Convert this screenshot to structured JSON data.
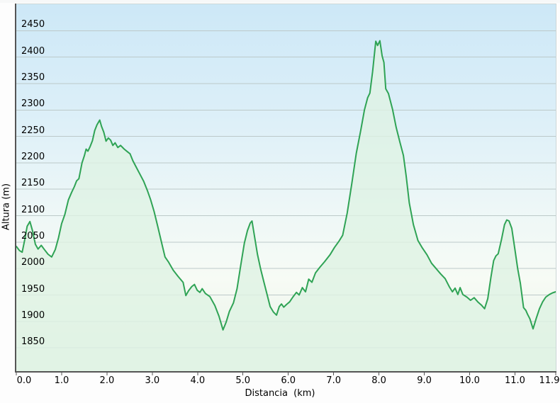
{
  "chart_data": {
    "type": "area",
    "title": "",
    "ylabel": "Altura (m)",
    "xlabel": "Distancia  (km)",
    "grid": "horizontal",
    "legend": "none",
    "xlim": [
      0,
      11.9
    ],
    "ylim": [
      1806,
      2500
    ],
    "x_tick_values": [
      0,
      1,
      2,
      3,
      4,
      5,
      6,
      7,
      8,
      9,
      10,
      11,
      11.9
    ],
    "x_tick_labels": [
      "0.0",
      "1.0",
      "2.0",
      "3.0",
      "4.0",
      "5.0",
      "6.0",
      "7.0",
      "8.0",
      "9.0",
      "10.0",
      "11.0",
      "11.9"
    ],
    "y_tick_values": [
      1850,
      1900,
      1950,
      2000,
      2050,
      2100,
      2150,
      2200,
      2250,
      2300,
      2350,
      2400,
      2450
    ],
    "y_tick_labels": [
      "1850",
      "1900",
      "1950",
      "2000",
      "2050",
      "2100",
      "2150",
      "2200",
      "2250",
      "2300",
      "2350",
      "2400",
      "2450"
    ],
    "colors": {
      "line": "#2fa355",
      "fill": "rgba(223,242,228,0.80)",
      "grid": "#bcc9c9",
      "axis": "#555555",
      "frame": "#ccd6d6",
      "text": "#000000",
      "bg_stops": [
        [
          "0%",
          "#cde8f7"
        ],
        [
          "30%",
          "#dceff8"
        ],
        [
          "55%",
          "#edf7f7"
        ],
        [
          "75%",
          "#f7fbf5"
        ],
        [
          "88%",
          "#edf6ec"
        ],
        [
          "100%",
          "#e8f4e9"
        ]
      ]
    },
    "series": [
      {
        "name": "elevation-profile",
        "points": [
          [
            0.0,
            2042
          ],
          [
            0.07,
            2034
          ],
          [
            0.13,
            2031
          ],
          [
            0.18,
            2052
          ],
          [
            0.24,
            2080
          ],
          [
            0.3,
            2089
          ],
          [
            0.36,
            2071
          ],
          [
            0.42,
            2046
          ],
          [
            0.48,
            2037
          ],
          [
            0.55,
            2044
          ],
          [
            0.62,
            2036
          ],
          [
            0.7,
            2027
          ],
          [
            0.78,
            2022
          ],
          [
            0.86,
            2036
          ],
          [
            0.93,
            2058
          ],
          [
            1.0,
            2085
          ],
          [
            1.07,
            2102
          ],
          [
            1.15,
            2130
          ],
          [
            1.22,
            2144
          ],
          [
            1.28,
            2155
          ],
          [
            1.33,
            2166
          ],
          [
            1.38,
            2170
          ],
          [
            1.45,
            2200
          ],
          [
            1.5,
            2213
          ],
          [
            1.54,
            2226
          ],
          [
            1.58,
            2222
          ],
          [
            1.63,
            2231
          ],
          [
            1.68,
            2242
          ],
          [
            1.73,
            2261
          ],
          [
            1.78,
            2272
          ],
          [
            1.84,
            2281
          ],
          [
            1.88,
            2269
          ],
          [
            1.93,
            2258
          ],
          [
            1.98,
            2241
          ],
          [
            2.03,
            2247
          ],
          [
            2.08,
            2243
          ],
          [
            2.13,
            2233
          ],
          [
            2.18,
            2238
          ],
          [
            2.24,
            2229
          ],
          [
            2.3,
            2233
          ],
          [
            2.38,
            2226
          ],
          [
            2.45,
            2221
          ],
          [
            2.51,
            2217
          ],
          [
            2.57,
            2204
          ],
          [
            2.65,
            2191
          ],
          [
            2.73,
            2178
          ],
          [
            2.81,
            2165
          ],
          [
            2.89,
            2148
          ],
          [
            2.96,
            2131
          ],
          [
            3.04,
            2108
          ],
          [
            3.12,
            2080
          ],
          [
            3.2,
            2051
          ],
          [
            3.28,
            2022
          ],
          [
            3.36,
            2012
          ],
          [
            3.46,
            1997
          ],
          [
            3.57,
            1985
          ],
          [
            3.68,
            1974
          ],
          [
            3.74,
            1949
          ],
          [
            3.8,
            1958
          ],
          [
            3.87,
            1966
          ],
          [
            3.93,
            1970
          ],
          [
            3.99,
            1959
          ],
          [
            4.05,
            1955
          ],
          [
            4.1,
            1962
          ],
          [
            4.17,
            1953
          ],
          [
            4.27,
            1947
          ],
          [
            4.38,
            1930
          ],
          [
            4.47,
            1910
          ],
          [
            4.56,
            1884
          ],
          [
            4.63,
            1899
          ],
          [
            4.7,
            1919
          ],
          [
            4.79,
            1935
          ],
          [
            4.87,
            1962
          ],
          [
            4.95,
            2006
          ],
          [
            5.03,
            2048
          ],
          [
            5.1,
            2072
          ],
          [
            5.16,
            2086
          ],
          [
            5.2,
            2090
          ],
          [
            5.26,
            2058
          ],
          [
            5.32,
            2027
          ],
          [
            5.39,
            1999
          ],
          [
            5.46,
            1975
          ],
          [
            5.52,
            1955
          ],
          [
            5.6,
            1928
          ],
          [
            5.67,
            1918
          ],
          [
            5.74,
            1912
          ],
          [
            5.8,
            1928
          ],
          [
            5.85,
            1933
          ],
          [
            5.9,
            1927
          ],
          [
            5.96,
            1932
          ],
          [
            6.03,
            1937
          ],
          [
            6.1,
            1946
          ],
          [
            6.18,
            1955
          ],
          [
            6.24,
            1950
          ],
          [
            6.31,
            1964
          ],
          [
            6.38,
            1956
          ],
          [
            6.45,
            1980
          ],
          [
            6.52,
            1974
          ],
          [
            6.6,
            1992
          ],
          [
            6.7,
            2003
          ],
          [
            6.8,
            2013
          ],
          [
            6.92,
            2026
          ],
          [
            7.02,
            2040
          ],
          [
            7.12,
            2052
          ],
          [
            7.2,
            2063
          ],
          [
            7.3,
            2105
          ],
          [
            7.4,
            2160
          ],
          [
            7.5,
            2218
          ],
          [
            7.6,
            2262
          ],
          [
            7.68,
            2300
          ],
          [
            7.75,
            2323
          ],
          [
            7.8,
            2332
          ],
          [
            7.86,
            2372
          ],
          [
            7.93,
            2430
          ],
          [
            7.97,
            2422
          ],
          [
            8.02,
            2431
          ],
          [
            8.07,
            2402
          ],
          [
            8.11,
            2390
          ],
          [
            8.15,
            2340
          ],
          [
            8.21,
            2331
          ],
          [
            8.3,
            2301
          ],
          [
            8.38,
            2267
          ],
          [
            8.46,
            2240
          ],
          [
            8.54,
            2214
          ],
          [
            8.6,
            2175
          ],
          [
            8.67,
            2124
          ],
          [
            8.76,
            2083
          ],
          [
            8.86,
            2053
          ],
          [
            8.95,
            2040
          ],
          [
            9.06,
            2026
          ],
          [
            9.16,
            2010
          ],
          [
            9.26,
            2000
          ],
          [
            9.36,
            1990
          ],
          [
            9.46,
            1981
          ],
          [
            9.55,
            1966
          ],
          [
            9.62,
            1956
          ],
          [
            9.68,
            1963
          ],
          [
            9.74,
            1951
          ],
          [
            9.79,
            1964
          ],
          [
            9.85,
            1951
          ],
          [
            9.94,
            1946
          ],
          [
            10.02,
            1940
          ],
          [
            10.1,
            1945
          ],
          [
            10.18,
            1937
          ],
          [
            10.26,
            1931
          ],
          [
            10.33,
            1924
          ],
          [
            10.4,
            1943
          ],
          [
            10.47,
            1984
          ],
          [
            10.53,
            2015
          ],
          [
            10.58,
            2024
          ],
          [
            10.63,
            2028
          ],
          [
            10.7,
            2054
          ],
          [
            10.77,
            2083
          ],
          [
            10.82,
            2092
          ],
          [
            10.87,
            2090
          ],
          [
            10.93,
            2076
          ],
          [
            11.0,
            2036
          ],
          [
            11.06,
            2000
          ],
          [
            11.12,
            1972
          ],
          [
            11.19,
            1926
          ],
          [
            11.24,
            1921
          ],
          [
            11.28,
            1913
          ],
          [
            11.33,
            1905
          ],
          [
            11.4,
            1886
          ],
          [
            11.47,
            1906
          ],
          [
            11.54,
            1924
          ],
          [
            11.61,
            1937
          ],
          [
            11.68,
            1946
          ],
          [
            11.76,
            1951
          ],
          [
            11.83,
            1954
          ],
          [
            11.9,
            1956
          ]
        ]
      }
    ]
  }
}
